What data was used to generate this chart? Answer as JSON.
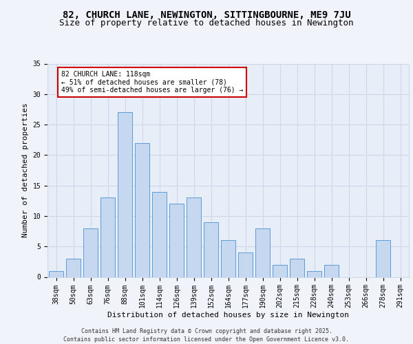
{
  "title1": "82, CHURCH LANE, NEWINGTON, SITTINGBOURNE, ME9 7JU",
  "title2": "Size of property relative to detached houses in Newington",
  "xlabel": "Distribution of detached houses by size in Newington",
  "ylabel": "Number of detached properties",
  "categories": [
    "38sqm",
    "50sqm",
    "63sqm",
    "76sqm",
    "88sqm",
    "101sqm",
    "114sqm",
    "126sqm",
    "139sqm",
    "152sqm",
    "164sqm",
    "177sqm",
    "190sqm",
    "202sqm",
    "215sqm",
    "228sqm",
    "240sqm",
    "253sqm",
    "266sqm",
    "278sqm",
    "291sqm"
  ],
  "values": [
    1,
    3,
    8,
    13,
    27,
    22,
    14,
    12,
    13,
    9,
    6,
    4,
    8,
    2,
    3,
    1,
    2,
    0,
    0,
    6,
    0
  ],
  "bar_color": "#c5d8f0",
  "bar_edge_color": "#5b9bd5",
  "annotation_text": "82 CHURCH LANE: 118sqm\n← 51% of detached houses are smaller (78)\n49% of semi-detached houses are larger (76) →",
  "annotation_box_color": "#ffffff",
  "annotation_box_edge": "#cc0000",
  "ylim": [
    0,
    35
  ],
  "yticks": [
    0,
    5,
    10,
    15,
    20,
    25,
    30,
    35
  ],
  "grid_color": "#d0d8e8",
  "bg_color": "#e8eef8",
  "footer": "Contains HM Land Registry data © Crown copyright and database right 2025.\nContains public sector information licensed under the Open Government Licence v3.0.",
  "title_fontsize": 10,
  "subtitle_fontsize": 9,
  "ylabel_fontsize": 8,
  "xlabel_fontsize": 8,
  "tick_fontsize": 7,
  "footer_fontsize": 6,
  "annotation_fontsize": 7
}
